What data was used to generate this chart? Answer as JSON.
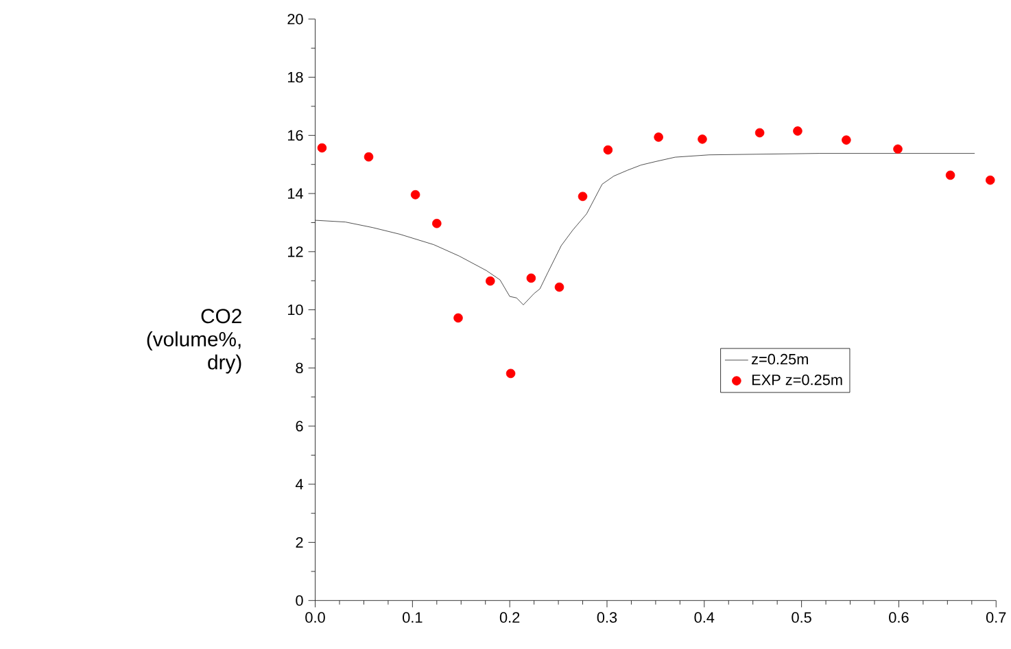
{
  "chart_data": {
    "type": "line",
    "ylabel": "CO2 (volume%, dry)",
    "xlim": [
      0,
      0.7
    ],
    "ylim": [
      0,
      20
    ],
    "xticks": [
      {
        "value": 0,
        "label": "0.0"
      },
      0.1,
      0.2,
      0.3,
      0.4,
      0.5,
      0.6,
      0.7
    ],
    "yticks": [
      0,
      2,
      4,
      6,
      8,
      10,
      12,
      14,
      16,
      18,
      20
    ],
    "legend": "right",
    "grid": false,
    "series": [
      {
        "name": "z=0.25m",
        "color": "#222222",
        "marker": "none",
        "line_style": "solid",
        "x": [
          0,
          0.031,
          0.059,
          0.087,
          0.122,
          0.148,
          0.176,
          0.19,
          0.2,
          0.207,
          0.214,
          0.225,
          0.231,
          0.239,
          0.253,
          0.265,
          0.279,
          0.295,
          0.307,
          0.321,
          0.335,
          0.35,
          0.37,
          0.405,
          0.518,
          0.678
        ],
        "values": [
          13.08,
          13.02,
          12.83,
          12.6,
          12.24,
          11.85,
          11.35,
          11.03,
          10.46,
          10.41,
          10.17,
          10.56,
          10.72,
          11.27,
          12.21,
          12.75,
          13.3,
          14.32,
          14.6,
          14.8,
          14.98,
          15.1,
          15.25,
          15.33,
          15.38,
          15.38
        ]
      },
      {
        "name": "EXP z=0.25m",
        "type": "scatter",
        "color": "#ff0000",
        "marker": "circle",
        "x": [
          0.007,
          0.055,
          0.103,
          0.125,
          0.147,
          0.18,
          0.201,
          0.222,
          0.251,
          0.275,
          0.301,
          0.353,
          0.398,
          0.457,
          0.496,
          0.546,
          0.599,
          0.653,
          0.694
        ],
        "values": [
          15.57,
          15.26,
          13.96,
          12.97,
          9.72,
          10.99,
          7.81,
          11.09,
          10.78,
          13.9,
          15.5,
          15.94,
          15.87,
          16.09,
          16.15,
          15.84,
          15.53,
          14.63,
          14.46
        ]
      }
    ]
  }
}
